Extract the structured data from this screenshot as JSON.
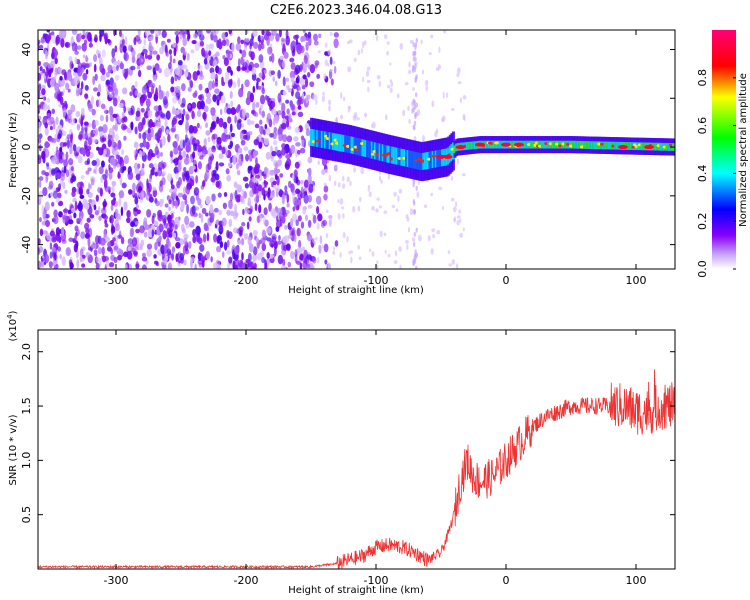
{
  "title": "C2E6.2023.346.04.08.G13",
  "chart_data": [
    {
      "type": "heatmap",
      "xlabel": "Height of straight line (km)",
      "ylabel": "Frequency (Hz)",
      "xlim": [
        -360,
        130
      ],
      "ylim": [
        -50,
        48
      ],
      "x_ticks": [
        -300,
        -200,
        -100,
        0,
        100
      ],
      "y_ticks": [
        -40,
        -20,
        0,
        20,
        40
      ],
      "colorbar": {
        "label": "Normalized spectral amplitude",
        "range": [
          0,
          1
        ],
        "ticks": [
          "0.0",
          "0.2",
          "0.4",
          "0.6",
          "0.8"
        ],
        "tick_values": [
          0,
          0.2,
          0.4,
          0.6,
          0.8
        ],
        "colors": [
          "#ffffff",
          "#8800ff",
          "#0000ff",
          "#00ffff",
          "#00ff00",
          "#ffff00",
          "#ff0000",
          "#ff0088"
        ]
      },
      "features": {
        "noise_region_x": [
          -360,
          -150
        ],
        "ridge": [
          {
            "x": -150,
            "y": 4
          },
          {
            "x": -120,
            "y": 1
          },
          {
            "x": -90,
            "y": -3
          },
          {
            "x": -65,
            "y": -6
          },
          {
            "x": -45,
            "y": -4
          },
          {
            "x": -38,
            "y": 0
          },
          {
            "x": -20,
            "y": 1
          },
          {
            "x": 0,
            "y": 1
          },
          {
            "x": 50,
            "y": 1
          },
          {
            "x": 130,
            "y": 0
          }
        ]
      }
    },
    {
      "type": "line",
      "xlabel": "Height of straight line (km)",
      "ylabel": "SNR (10 * v/v)",
      "exponent_label": "(x10",
      "exponent_power": "4",
      "exponent_close": ")",
      "xlim": [
        -360,
        130
      ],
      "ylim": [
        0,
        2.2
      ],
      "x_ticks": [
        -300,
        -200,
        -100,
        0,
        100
      ],
      "y_ticks": [
        0.5,
        1.0,
        1.5,
        2.0
      ],
      "y_tick_labels": [
        "0.5",
        "1.0",
        "1.5",
        "2.0"
      ],
      "color": "#ee3333",
      "series": [
        {
          "x": [
            -360,
            -150,
            -130,
            -110,
            -100,
            -90,
            -80,
            -70,
            -60,
            -50,
            -45,
            -40,
            -35,
            -30,
            -25,
            -20,
            -10,
            0,
            10,
            20,
            30,
            40,
            50,
            60,
            70,
            80,
            90,
            100,
            110,
            120,
            130
          ],
          "values": [
            0.02,
            0.02,
            0.05,
            0.12,
            0.2,
            0.22,
            0.2,
            0.15,
            0.08,
            0.15,
            0.3,
            0.5,
            0.8,
            1.0,
            0.85,
            0.8,
            0.85,
            1.0,
            1.15,
            1.3,
            1.4,
            1.45,
            1.5,
            1.5,
            1.5,
            1.5,
            1.5,
            1.45,
            1.45,
            1.5,
            1.5
          ]
        }
      ]
    }
  ]
}
